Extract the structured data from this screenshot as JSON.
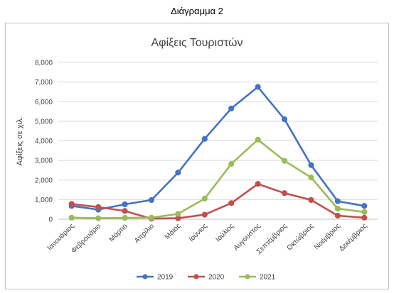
{
  "page": {
    "caption": "Διάγραμμα 2"
  },
  "colors": {
    "2019": "#4472C4",
    "2020": "#C0504D",
    "2021": "#9BBB59",
    "grid": "#d9d9d9",
    "frame": "#bfbfbf",
    "text": "#404040"
  },
  "chart_data": {
    "type": "line",
    "title": "Αφίξεις Τουριστών",
    "xlabel": "",
    "ylabel": "Αφίξεις σε χιλ.",
    "ylim": [
      0,
      8000
    ],
    "yticks": [
      "0",
      "1,000",
      "2,000",
      "3,000",
      "4,000",
      "5,000",
      "6,000",
      "7,000",
      "8,000"
    ],
    "ytick_values": [
      0,
      1000,
      2000,
      3000,
      4000,
      5000,
      6000,
      7000,
      8000
    ],
    "grid": true,
    "legend_position": "bottom",
    "categories": [
      "Ιανουάριος",
      "Φεβρουάριο",
      "Μάρτιο",
      "Απρίλιο",
      "Μάιος",
      "Ιούνιος",
      "Ιούλιος",
      "Αυγουστος",
      "Σεπτέμβριος",
      "Οκτώβριος",
      "Νοέμβριος",
      "Δεκέμβριος"
    ],
    "series": [
      {
        "name": "2019",
        "color": "#4472C4",
        "values": [
          680,
          490,
          760,
          980,
          2380,
          4100,
          5650,
          6750,
          5100,
          2760,
          920,
          680
        ]
      },
      {
        "name": "2020",
        "color": "#C0504D",
        "values": [
          780,
          620,
          420,
          30,
          50,
          230,
          820,
          1800,
          1330,
          980,
          180,
          80
        ]
      },
      {
        "name": "2021",
        "color": "#9BBB59",
        "values": [
          80,
          50,
          70,
          80,
          270,
          1050,
          2820,
          4060,
          2980,
          2130,
          540,
          370
        ]
      }
    ]
  }
}
